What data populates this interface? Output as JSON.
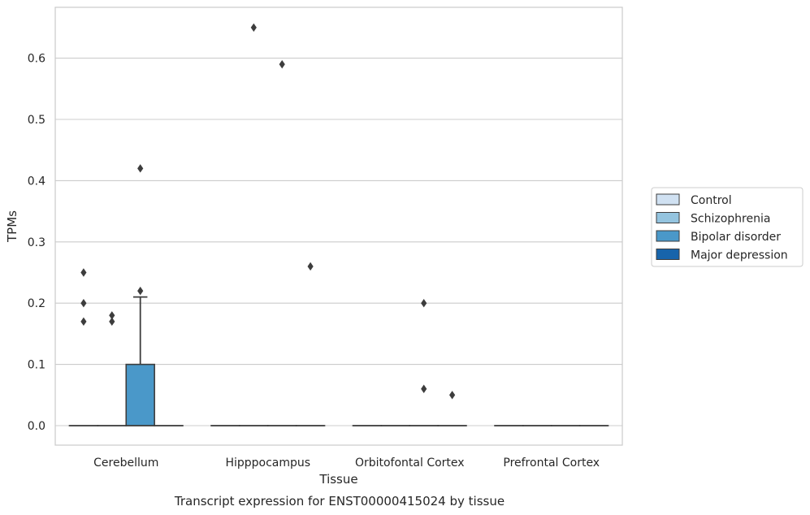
{
  "chart_data": {
    "type": "boxplot",
    "title": "Transcript expression for ENST00000415024 by tissue",
    "xlabel": "Tissue",
    "ylabel": "TPMs",
    "ylim": [
      -0.033,
      0.683
    ],
    "yticks": [
      0.0,
      0.1,
      0.2,
      0.3,
      0.4,
      0.5,
      0.6
    ],
    "grid": true,
    "legend_position": "right",
    "categories": [
      "Cerebellum",
      "Hipppocampus",
      "Orbitofontal Cortex",
      "Prefrontal Cortex"
    ],
    "series": [
      {
        "name": "Control",
        "color": "#d0e1f2",
        "boxes": [
          {
            "q1": 0,
            "median": 0,
            "q3": 0,
            "whisker_low": 0,
            "whisker_high": 0,
            "outliers": [
              0.17,
              0.2,
              0.25
            ]
          },
          {
            "q1": 0,
            "median": 0,
            "q3": 0,
            "whisker_low": 0,
            "whisker_high": 0,
            "outliers": []
          },
          {
            "q1": 0,
            "median": 0,
            "q3": 0,
            "whisker_low": 0,
            "whisker_high": 0,
            "outliers": []
          },
          {
            "q1": 0,
            "median": 0,
            "q3": 0,
            "whisker_low": 0,
            "whisker_high": 0,
            "outliers": []
          }
        ]
      },
      {
        "name": "Schizophrenia",
        "color": "#94c4df",
        "boxes": [
          {
            "q1": 0,
            "median": 0,
            "q3": 0,
            "whisker_low": 0,
            "whisker_high": 0,
            "outliers": [
              0.17,
              0.18
            ]
          },
          {
            "q1": 0,
            "median": 0,
            "q3": 0,
            "whisker_low": 0,
            "whisker_high": 0,
            "outliers": [
              0.65
            ]
          },
          {
            "q1": 0,
            "median": 0,
            "q3": 0,
            "whisker_low": 0,
            "whisker_high": 0,
            "outliers": []
          },
          {
            "q1": 0,
            "median": 0,
            "q3": 0,
            "whisker_low": 0,
            "whisker_high": 0,
            "outliers": []
          }
        ]
      },
      {
        "name": "Bipolar disorder",
        "color": "#4a98c9",
        "boxes": [
          {
            "q1": 0,
            "median": 0,
            "q3": 0.1,
            "whisker_low": 0,
            "whisker_high": 0.21,
            "outliers": [
              0.22,
              0.42
            ]
          },
          {
            "q1": 0,
            "median": 0,
            "q3": 0,
            "whisker_low": 0,
            "whisker_high": 0,
            "outliers": [
              0.59
            ]
          },
          {
            "q1": 0,
            "median": 0,
            "q3": 0,
            "whisker_low": 0,
            "whisker_high": 0,
            "outliers": [
              0.06,
              0.2
            ]
          },
          {
            "q1": 0,
            "median": 0,
            "q3": 0,
            "whisker_low": 0,
            "whisker_high": 0,
            "outliers": []
          }
        ]
      },
      {
        "name": "Major depression",
        "color": "#1764ab",
        "boxes": [
          {
            "q1": 0,
            "median": 0,
            "q3": 0,
            "whisker_low": 0,
            "whisker_high": 0,
            "outliers": []
          },
          {
            "q1": 0,
            "median": 0,
            "q3": 0,
            "whisker_low": 0,
            "whisker_high": 0,
            "outliers": [
              0.26
            ]
          },
          {
            "q1": 0,
            "median": 0,
            "q3": 0,
            "whisker_low": 0,
            "whisker_high": 0,
            "outliers": [
              0.05
            ]
          },
          {
            "q1": 0,
            "median": 0,
            "q3": 0,
            "whisker_low": 0,
            "whisker_high": 0,
            "outliers": []
          }
        ]
      }
    ]
  }
}
